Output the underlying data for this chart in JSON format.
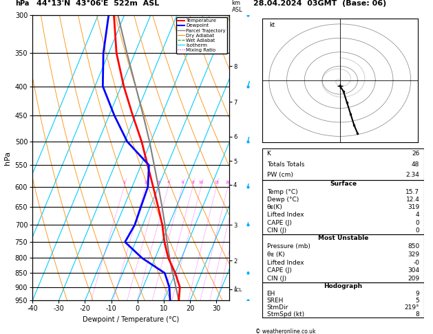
{
  "title_left": "44°13'N  43°06'E  522m  ASL",
  "title_right": "28.04.2024  03GMT  (Base: 06)",
  "xlabel": "Dewpoint / Temperature (°C)",
  "ylabel_left": "hPa",
  "pressure_ticks": [
    300,
    350,
    400,
    450,
    500,
    550,
    600,
    650,
    700,
    750,
    800,
    850,
    900,
    950
  ],
  "temp_ticks": [
    -40,
    -30,
    -20,
    -10,
    0,
    10,
    20,
    30
  ],
  "km_ticks": [
    1,
    2,
    3,
    4,
    5,
    6,
    7,
    8
  ],
  "km_pressures": [
    907,
    808,
    700,
    595,
    541,
    490,
    426,
    369
  ],
  "temp_profile": {
    "pressure": [
      950,
      900,
      850,
      800,
      750,
      700,
      650,
      600,
      550,
      500,
      450,
      400,
      350,
      300
    ],
    "temp": [
      15.7,
      14.0,
      10.0,
      5.0,
      1.0,
      -2.5,
      -7.0,
      -12.0,
      -17.5,
      -23.5,
      -31.0,
      -39.0,
      -47.0,
      -54.0
    ]
  },
  "dewp_profile": {
    "pressure": [
      950,
      900,
      850,
      800,
      750,
      700,
      650,
      600,
      550,
      500,
      450,
      400,
      350,
      300
    ],
    "temp": [
      12.4,
      10.0,
      6.0,
      -5.0,
      -14.0,
      -13.0,
      -13.5,
      -14.0,
      -17.0,
      -29.0,
      -38.0,
      -47.0,
      -52.0,
      -56.0
    ]
  },
  "parcel_profile": {
    "pressure": [
      950,
      900,
      850,
      800,
      750,
      700,
      650,
      600,
      550,
      500,
      450,
      400,
      350,
      300
    ],
    "temp": [
      15.7,
      12.5,
      9.0,
      5.5,
      2.0,
      -1.5,
      -5.5,
      -10.0,
      -15.0,
      -20.5,
      -27.0,
      -34.5,
      -43.0,
      -52.5
    ]
  },
  "lcl_pressure": 910,
  "colors": {
    "temperature": "#ff0000",
    "dewpoint": "#0000ff",
    "parcel": "#808080",
    "dry_adiabat": "#ff8c00",
    "wet_adiabat": "#00aa00",
    "isotherm": "#00ccff",
    "mixing_ratio": "#ff00ff",
    "background": "#ffffff",
    "grid": "#000000"
  },
  "stats": {
    "K": 26,
    "Totals_Totals": 48,
    "PW_cm": "2.34",
    "Surface_Temp": "15.7",
    "Surface_Dewp": "12.4",
    "Surface_theta_e": 319,
    "Surface_LI": 4,
    "Surface_CAPE": 0,
    "Surface_CIN": 0,
    "MU_Pressure": 850,
    "MU_theta_e": 329,
    "MU_LI": "-0",
    "MU_CAPE": 304,
    "MU_CIN": 209,
    "Hodo_EH": 9,
    "Hodo_SREH": 5,
    "StmDir": "219°",
    "StmSpd": 8
  }
}
